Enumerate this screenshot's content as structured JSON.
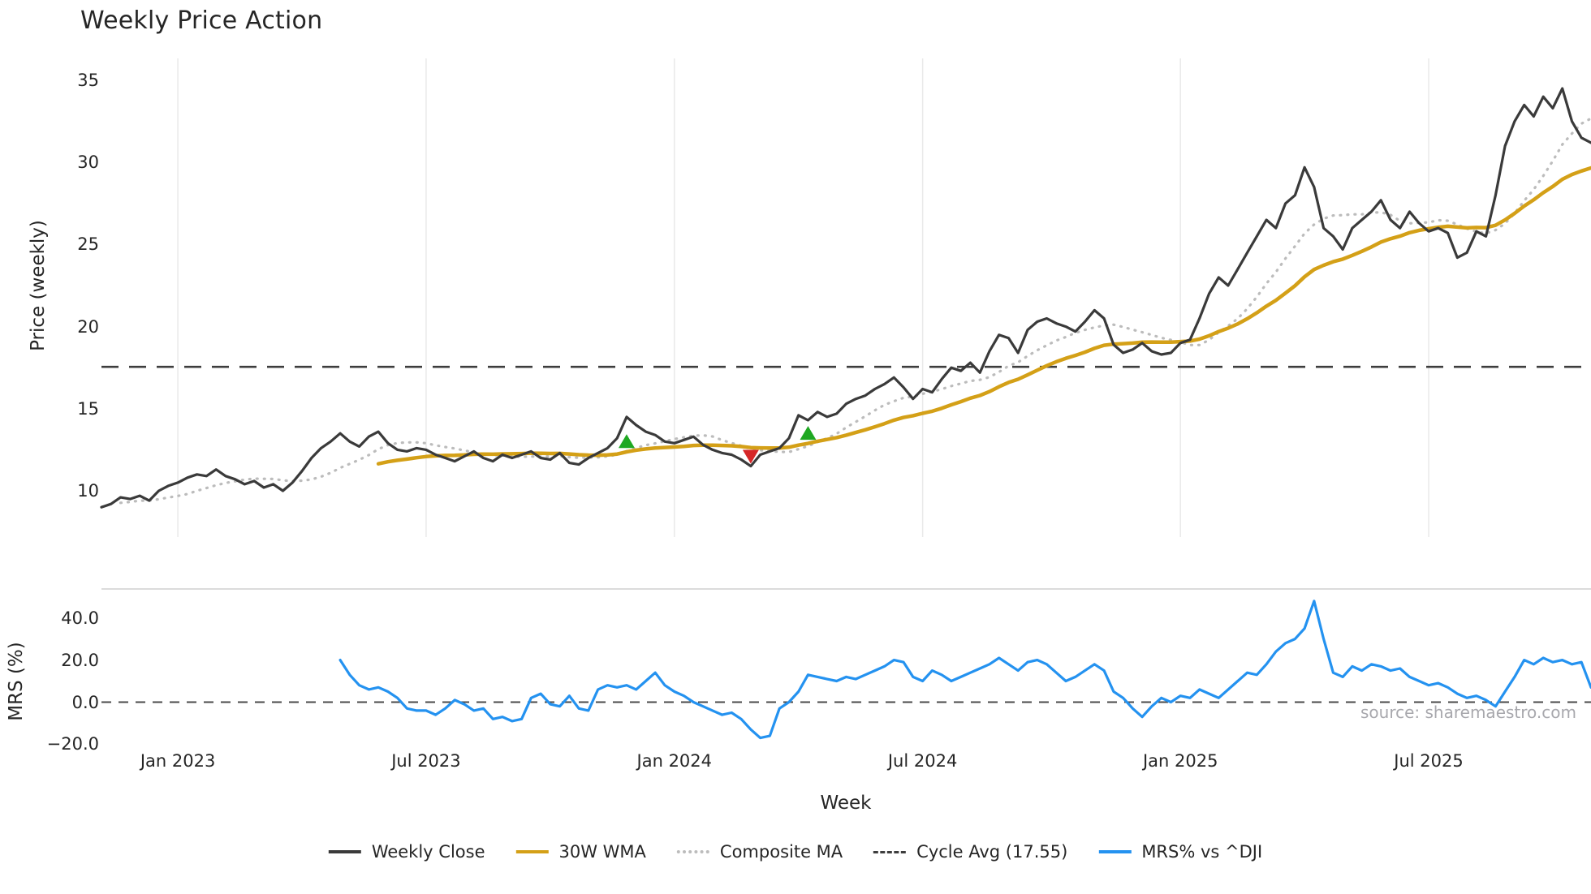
{
  "title": "Weekly Price Action",
  "source_note": "source: sharemaestro.com",
  "axes": {
    "xlabel": "Week",
    "top_ytick_labels": [
      "35",
      "30",
      "25",
      "20",
      "15",
      "10"
    ],
    "bottom_ytick_labels": [
      "40.0",
      "20.0",
      "0.0",
      "−20.0"
    ],
    "xtick_labels": [
      "Jan 2023",
      "Jul 2023",
      "Jan 2024",
      "Jul 2024",
      "Jan 2025",
      "Jul 2025"
    ]
  },
  "legend": [
    {
      "label": "Weekly Close",
      "color": "#3a3a3a",
      "style": "solid"
    },
    {
      "label": "30W WMA",
      "color": "#d4a017",
      "style": "solid"
    },
    {
      "label": "Composite MA",
      "color": "#bcbcbc",
      "style": "dotted"
    },
    {
      "label": "Cycle Avg (17.55)",
      "color": "#3d3d3d",
      "style": "dashed"
    },
    {
      "label": "MRS% vs ^DJI",
      "color": "#2492f0",
      "style": "solid"
    }
  ],
  "chart_data": {
    "type": "line",
    "title": "Weekly Price Action",
    "xlabel": "Week",
    "x_unit": "week_index",
    "n_weeks": 157,
    "x_tick_indices": [
      8,
      34,
      60,
      86,
      113,
      139
    ],
    "x_tick_labels": [
      "Jan 2023",
      "Jul 2023",
      "Jan 2024",
      "Jul 2024",
      "Jan 2025",
      "Jul 2025"
    ],
    "grid": "vertical-only-top-panel",
    "legend_position": "bottom-center",
    "colors": {
      "close": "#3a3a3a",
      "wma": "#d4a017",
      "composite": "#bcbcbc",
      "cycle": "#3d3d3d",
      "mrs": "#2492f0",
      "buy": "#1fa822",
      "sell": "#d62728",
      "grid": "#e9e9e9",
      "separator": "#cfcfcf",
      "zero_line": "#4a4a4a"
    },
    "top_panel": {
      "ylabel": "Price (weekly)",
      "ylim": [
        8.5,
        36
      ],
      "ytick_values": [
        35,
        30,
        25,
        20,
        15,
        10
      ],
      "cycle_avg": 17.55,
      "wma_window": 30,
      "composite_window": 10,
      "series_names": [
        "Weekly Close",
        "30W WMA",
        "Composite MA",
        "Cycle Avg (17.55)"
      ],
      "close": [
        9.0,
        9.2,
        9.6,
        9.5,
        9.7,
        9.4,
        10.0,
        10.3,
        10.5,
        10.8,
        11.0,
        10.9,
        11.3,
        10.9,
        10.7,
        10.4,
        10.6,
        10.2,
        10.4,
        10.0,
        10.5,
        11.2,
        12.0,
        12.6,
        13.0,
        13.5,
        13.0,
        12.7,
        13.3,
        13.6,
        12.9,
        12.5,
        12.4,
        12.6,
        12.5,
        12.2,
        12.0,
        11.8,
        12.1,
        12.4,
        12.0,
        11.8,
        12.2,
        12.0,
        12.2,
        12.4,
        12.0,
        11.9,
        12.3,
        11.7,
        11.6,
        12.0,
        12.3,
        12.6,
        13.2,
        14.5,
        14.0,
        13.6,
        13.4,
        13.0,
        12.9,
        13.1,
        13.3,
        12.8,
        12.5,
        12.3,
        12.2,
        11.9,
        11.5,
        12.2,
        12.4,
        12.6,
        13.2,
        14.6,
        14.3,
        14.8,
        14.5,
        14.7,
        15.3,
        15.6,
        15.8,
        16.2,
        16.5,
        16.9,
        16.3,
        15.6,
        16.2,
        16.0,
        16.8,
        17.5,
        17.3,
        17.8,
        17.2,
        18.5,
        19.5,
        19.3,
        18.4,
        19.8,
        20.3,
        20.5,
        20.2,
        20.0,
        19.7,
        20.3,
        21.0,
        20.5,
        18.9,
        18.4,
        18.6,
        19.0,
        18.5,
        18.3,
        18.4,
        19.0,
        19.2,
        20.5,
        22.0,
        23.0,
        22.5,
        23.5,
        24.5,
        25.5,
        26.5,
        26.0,
        27.5,
        28.0,
        29.7,
        28.5,
        26.0,
        25.5,
        24.7,
        26.0,
        26.5,
        27.0,
        27.7,
        26.5,
        26.0,
        27.0,
        26.3,
        25.8,
        26.0,
        25.7,
        24.2,
        24.5,
        25.8,
        25.5,
        28.0,
        31.0,
        32.5,
        33.5,
        32.8,
        34.0,
        33.3,
        34.5,
        32.5,
        31.5,
        31.2
      ],
      "buy_markers": [
        {
          "week": 55,
          "price": 13.0
        },
        {
          "week": 74,
          "price": 13.5
        }
      ],
      "sell_markers": [
        {
          "week": 68,
          "price": 12.1
        }
      ]
    },
    "bottom_panel": {
      "ylabel": "MRS (%)",
      "ylim": [
        -24,
        52
      ],
      "ytick_values": [
        40,
        20,
        0,
        -20
      ],
      "zero_line": 0,
      "series_name": "MRS% vs ^DJI",
      "mrs_start_week": 25,
      "mrs": [
        20,
        13,
        8,
        6,
        7,
        5,
        2,
        -3,
        -4,
        -4,
        -6,
        -3,
        1,
        -1,
        -4,
        -3,
        -8,
        -7,
        -9,
        -8,
        2,
        4,
        -1,
        -2,
        3,
        -3,
        -4,
        6,
        8,
        7,
        8,
        6,
        10,
        14,
        8,
        5,
        3,
        0,
        -2,
        -4,
        -6,
        -5,
        -8,
        -13,
        -17,
        -16,
        -3,
        0,
        5,
        13,
        12,
        11,
        10,
        12,
        11,
        13,
        15,
        17,
        20,
        19,
        12,
        10,
        15,
        13,
        10,
        12,
        14,
        16,
        18,
        21,
        18,
        15,
        19,
        20,
        18,
        14,
        10,
        12,
        15,
        18,
        15,
        5,
        2,
        -3,
        -7,
        -2,
        2,
        0,
        3,
        2,
        6,
        4,
        2,
        6,
        10,
        14,
        13,
        18,
        24,
        28,
        30,
        35,
        48,
        30,
        14,
        12,
        17,
        15,
        18,
        17,
        15,
        16,
        12,
        10,
        8,
        9,
        7,
        4,
        2,
        3,
        1,
        -2,
        5,
        12,
        20,
        18,
        21,
        19,
        20,
        18,
        19,
        7
      ]
    }
  }
}
